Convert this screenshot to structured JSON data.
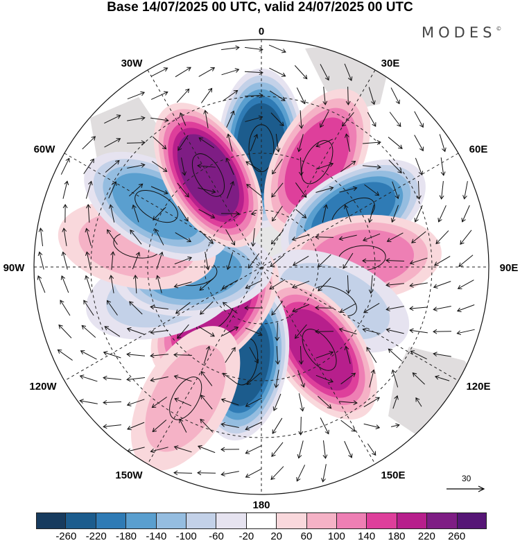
{
  "title": "Base 14/07/2025 00 UTC, valid 24/07/2025 00 UTC",
  "brand": "MODES",
  "brand_mark": "©",
  "longitude_labels": {
    "0": "0",
    "30E": "30E",
    "60E": "60E",
    "90E": "90E",
    "120E": "120E",
    "150E": "150E",
    "180": "180",
    "150W": "150W",
    "120W": "120W",
    "90W": "90W",
    "60W": "60W",
    "30W": "30W"
  },
  "reference_vector": "30",
  "colorbar": {
    "ticks": [
      "-260",
      "-220",
      "-180",
      "-140",
      "-100",
      "-60",
      "-20",
      "20",
      "60",
      "100",
      "140",
      "180",
      "220",
      "260"
    ],
    "colors": [
      "#173b5e",
      "#1c5c8d",
      "#2f7bb5",
      "#5a9fcf",
      "#95bde0",
      "#c3d1e8",
      "#e6e3f0",
      "#ffffff",
      "#f9d8dc",
      "#f5b2c6",
      "#ee7fb4",
      "#de3f9b",
      "#b71f8c",
      "#7e1d84",
      "#561676"
    ]
  },
  "map_data": {
    "projection": "polar stereographic, south pole",
    "anomalies": [
      {
        "lon": 0,
        "lat": -43,
        "value": -250
      },
      {
        "lon": 28,
        "lat": -43,
        "value": 170
      },
      {
        "lon": 60,
        "lat": -48,
        "value": -180
      },
      {
        "lon": 85,
        "lat": -50,
        "value": 110
      },
      {
        "lon": 115,
        "lat": -58,
        "value": -90
      },
      {
        "lon": 145,
        "lat": -50,
        "value": 200
      },
      {
        "lon": -170,
        "lat": -52,
        "value": -220
      },
      {
        "lon": -135,
        "lat": -64,
        "value": 210
      },
      {
        "lon": -105,
        "lat": -50,
        "value": -90
      },
      {
        "lon": -95,
        "lat": -63,
        "value": -170
      },
      {
        "lon": -80,
        "lat": -40,
        "value": 80
      },
      {
        "lon": -60,
        "lat": -42,
        "value": -170
      },
      {
        "lon": -30,
        "lat": -48,
        "value": 220
      },
      {
        "lon": -150,
        "lat": -30,
        "value": 60
      }
    ]
  }
}
